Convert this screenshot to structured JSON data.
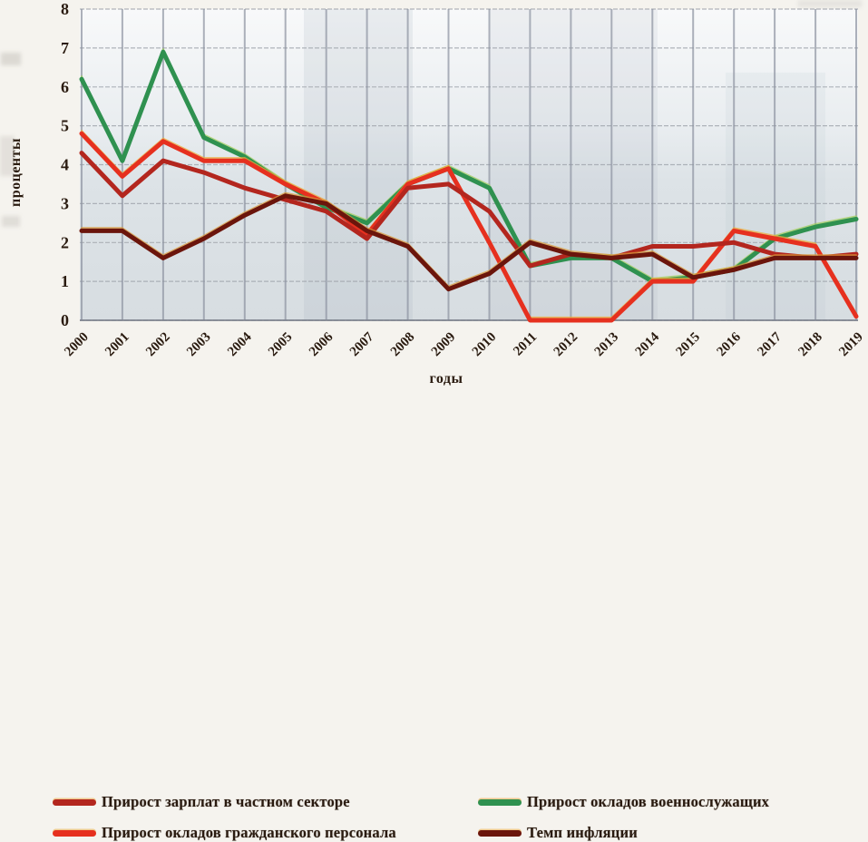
{
  "figure": {
    "y_axis_title": "проценты",
    "x_axis_title": "годы",
    "legend": [
      {
        "key": "private",
        "label": "Прирост зарплат в частном секторе"
      },
      {
        "key": "civilian",
        "label": "Прирост окладов гражданского персонала"
      },
      {
        "key": "military",
        "label": "Прирост окладов военнослужащих"
      },
      {
        "key": "inflation",
        "label": "Темп инфляции"
      }
    ]
  },
  "chart_data": {
    "type": "line",
    "title": "",
    "xlabel": "годы",
    "ylabel": "проценты",
    "ylim": [
      0,
      8
    ],
    "y_ticks": [
      0,
      1,
      2,
      3,
      4,
      5,
      6,
      7,
      8
    ],
    "grid": true,
    "legend_position": "bottom",
    "categories": [
      "2000",
      "2001",
      "2002",
      "2003",
      "2004",
      "2005",
      "2006",
      "2007",
      "2008",
      "2009",
      "2010",
      "2011",
      "2012",
      "2013",
      "2014",
      "2015",
      "2016",
      "2017",
      "2018",
      "2019"
    ],
    "series": [
      {
        "name": "Прирост окладов военнослужащих",
        "key": "military",
        "color": "#2f9150",
        "fringe": "#a5cf5f",
        "values": [
          6.2,
          4.1,
          6.9,
          4.7,
          4.2,
          3.5,
          2.9,
          2.5,
          3.5,
          3.9,
          3.4,
          1.4,
          1.6,
          1.6,
          1.0,
          1.1,
          1.3,
          2.1,
          2.4,
          2.6
        ]
      },
      {
        "name": "Прирост окладов гражданского персонала",
        "key": "civilian",
        "color": "#e6301f",
        "fringe": "#eeab3a",
        "values": [
          4.8,
          3.7,
          4.6,
          4.1,
          4.1,
          3.5,
          3.0,
          2.2,
          3.5,
          3.9,
          2.0,
          0.0,
          0.0,
          0.0,
          1.0,
          1.0,
          2.3,
          2.1,
          1.9,
          0.1
        ]
      },
      {
        "name": "Прирост зарплат в частном секторе",
        "key": "private",
        "color": "#b3261e",
        "fringe": null,
        "values": [
          4.3,
          3.2,
          4.1,
          3.8,
          3.4,
          3.1,
          2.8,
          2.1,
          3.4,
          3.5,
          2.8,
          1.4,
          1.7,
          1.6,
          1.9,
          1.9,
          2.0,
          1.7,
          1.6,
          1.7
        ]
      },
      {
        "name": "Темп инфляции",
        "key": "inflation",
        "color": "#6b150c",
        "fringe": "#d99a3a",
        "values": [
          2.3,
          2.3,
          1.6,
          2.1,
          2.7,
          3.2,
          3.0,
          2.3,
          1.9,
          0.8,
          1.2,
          2.0,
          1.7,
          1.6,
          1.7,
          1.1,
          1.3,
          1.6,
          1.6,
          1.6
        ]
      }
    ]
  }
}
